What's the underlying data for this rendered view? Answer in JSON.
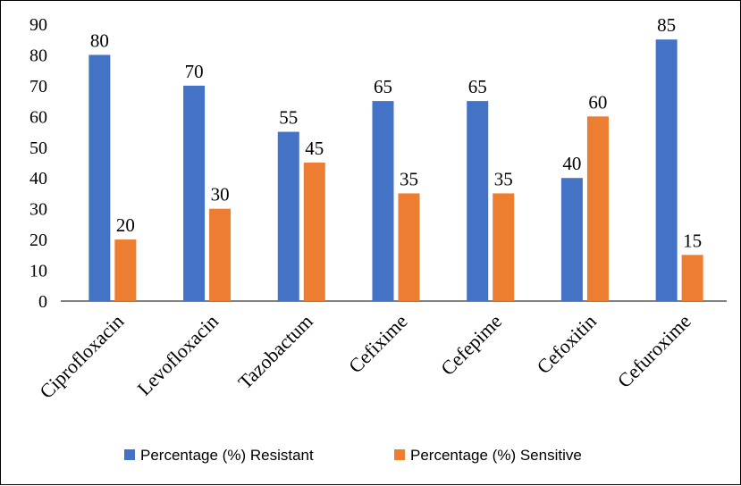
{
  "chart_data": {
    "type": "bar",
    "categories": [
      "Ciprofloxacin",
      "Levofloxacin",
      "Tazobactum",
      "Cefixime",
      "Cefepime",
      "Cefoxitin",
      "Cefuroxime"
    ],
    "series": [
      {
        "name": "Percentage (%) Resistant",
        "values": [
          80,
          70,
          55,
          65,
          65,
          40,
          85
        ],
        "color": "#4472C4"
      },
      {
        "name": "Percentage (%) Sensitive",
        "values": [
          20,
          30,
          45,
          35,
          35,
          60,
          15
        ],
        "color": "#ED7D31"
      }
    ],
    "ylim": [
      0,
      90
    ],
    "yticks": [
      0,
      10,
      20,
      30,
      40,
      50,
      60,
      70,
      80,
      90
    ],
    "title": "",
    "xlabel": "",
    "ylabel": "",
    "grid": false,
    "legend": "bottom",
    "data_labels": true
  }
}
